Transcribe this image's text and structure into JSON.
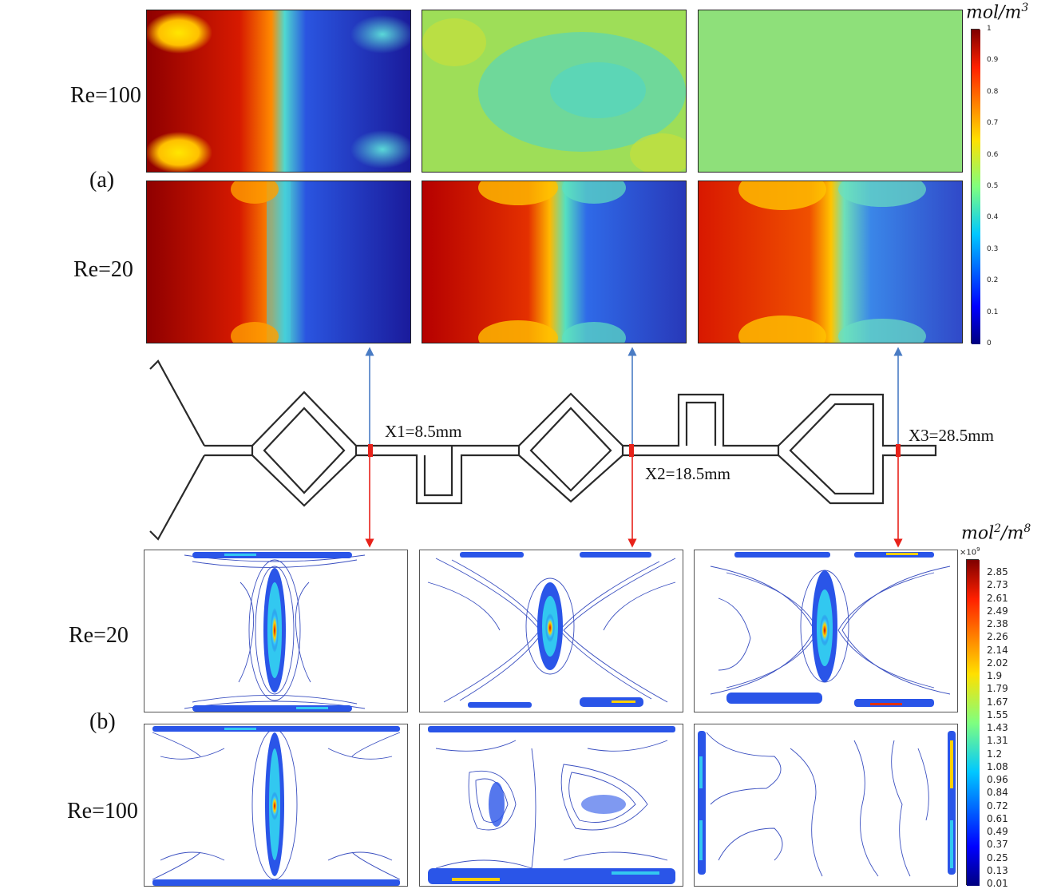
{
  "row_labels": {
    "a_top": "Re=100",
    "a_bottom": "Re=20",
    "b_top": "Re=20",
    "b_bottom": "Re=100"
  },
  "section_labels": {
    "a": "(a)",
    "b": "(b)"
  },
  "colorbar_a": {
    "unit_base": "mol/m",
    "unit_exp": "3",
    "ticks": [
      "1",
      "0.9",
      "0.8",
      "0.7",
      "0.6",
      "0.5",
      "0.4",
      "0.3",
      "0.2",
      "0.1",
      "0"
    ]
  },
  "colorbar_b": {
    "unit_base": "mol",
    "unit_exp1": "2",
    "unit_mid": "/m",
    "unit_exp2": "8",
    "multiplier_base": "×10",
    "multiplier_exp": "9",
    "ticks": [
      "2.85",
      "2.73",
      "2.61",
      "2.49",
      "2.38",
      "2.26",
      "2.14",
      "2.02",
      "1.9",
      "1.79",
      "1.67",
      "1.55",
      "1.43",
      "1.31",
      "1.2",
      "1.08",
      "0.96",
      "0.84",
      "0.72",
      "0.61",
      "0.49",
      "0.37",
      "0.25",
      "0.13",
      "0.01"
    ]
  },
  "positions": {
    "x1": "X1=8.5mm",
    "x2": "X2=18.5mm",
    "x3": "X3=28.5mm"
  },
  "colors": {
    "arrow_up": "#4a7cc4",
    "arrow_down": "#e8221a",
    "channel": "#2a2a2a",
    "contour": "#3a4fc0"
  }
}
